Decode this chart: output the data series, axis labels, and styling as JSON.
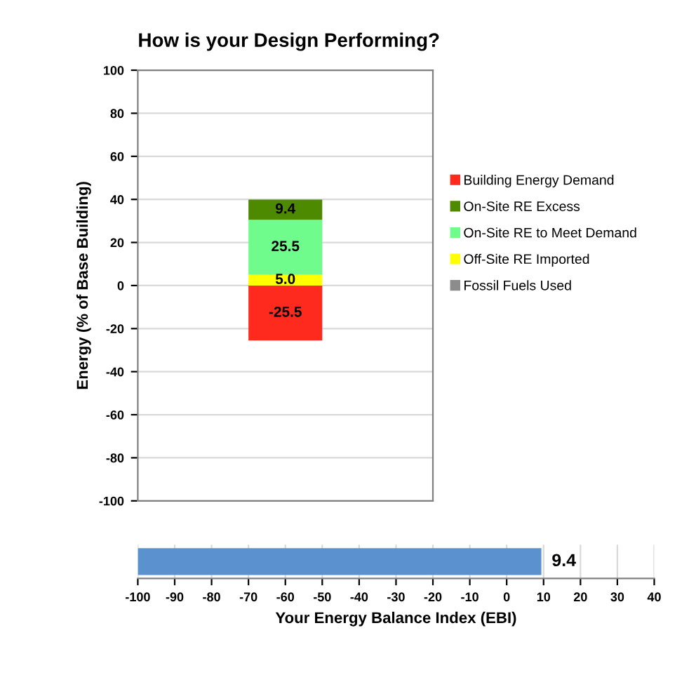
{
  "chart_data": [
    {
      "type": "bar",
      "title": "How is your Design Performing?",
      "ylabel": "Energy (% of Base Building)",
      "categories": [
        null
      ],
      "stacked": true,
      "ylim": [
        -100,
        100
      ],
      "yticks": [
        -100,
        -80,
        -60,
        -40,
        -20,
        0,
        20,
        40,
        60,
        80,
        100
      ],
      "grid": "y",
      "legend": "right",
      "series": [
        {
          "name": "Fossil Fuels Used",
          "color": "#8c8c8c",
          "values": [
            0
          ],
          "value_labels": [
            null
          ]
        },
        {
          "name": "Off-Site RE Imported",
          "color": "#ffff00",
          "values": [
            5.0
          ],
          "value_labels": [
            "5.0"
          ]
        },
        {
          "name": "On-Site RE to Meet Demand",
          "color": "#70fc8c",
          "values": [
            25.5
          ],
          "value_labels": [
            "25.5"
          ]
        },
        {
          "name": "On-Site RE Excess",
          "color": "#4e8a00",
          "values": [
            9.4
          ],
          "value_labels": [
            "9.4"
          ]
        },
        {
          "name": "Building Energy Demand",
          "color": "#ff2a1e",
          "values": [
            -25.5
          ],
          "value_labels": [
            "-25.5"
          ]
        }
      ]
    },
    {
      "type": "bar",
      "orientation": "horizontal",
      "xlabel": "Your Energy Balance Index (EBI)",
      "categories": [
        null
      ],
      "base": [
        -100
      ],
      "values": [
        109.4
      ],
      "value_labels": [
        "9.4"
      ],
      "color": "#5b91cf",
      "xlim": [
        -100,
        40
      ],
      "xticks": [
        -100,
        -90,
        -80,
        -70,
        -60,
        -50,
        -40,
        -30,
        -20,
        -10,
        0,
        10,
        20,
        30,
        40
      ],
      "grid": "x"
    }
  ]
}
